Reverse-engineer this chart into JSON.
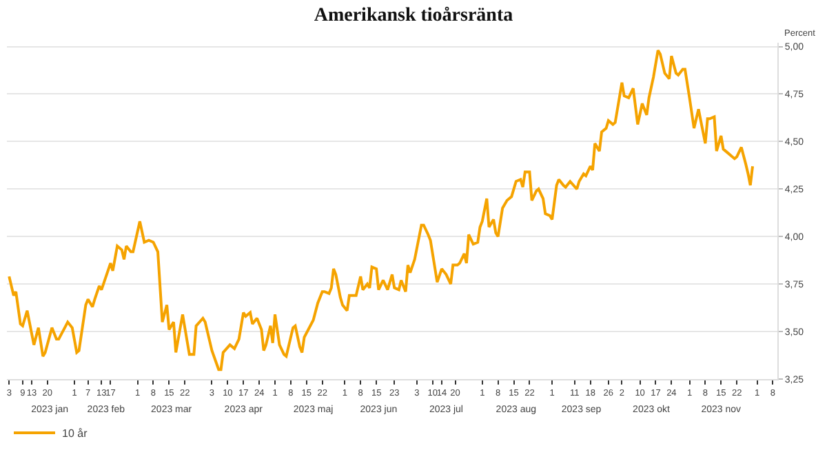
{
  "chart_data": {
    "type": "line",
    "title": "Amerikansk tioårsränta",
    "ylabel": "Percent",
    "legend": "bottom left",
    "grid": "y",
    "marker": "none",
    "line_style": "solid",
    "xlim": [
      "2023-01-02",
      "2023-12-10"
    ],
    "ylim": [
      3.25,
      5.02
    ],
    "yticks": [
      {
        "value": 3.25,
        "label": "3,25"
      },
      {
        "value": 3.5,
        "label": "3,50"
      },
      {
        "value": 3.75,
        "label": "3,75"
      },
      {
        "value": 4,
        "label": "4,00"
      },
      {
        "value": 4.25,
        "label": "4,25"
      },
      {
        "value": 4.5,
        "label": "4,50"
      },
      {
        "value": 4.75,
        "label": "4,75"
      },
      {
        "value": 5,
        "label": "5,00"
      }
    ],
    "xticks": [
      {
        "value": "2023-01-03",
        "label": "3"
      },
      {
        "value": "2023-01-09",
        "label": "9"
      },
      {
        "value": "2023-01-13",
        "label": "13"
      },
      {
        "value": "2023-01-20",
        "label": "20"
      },
      {
        "value": "2023-02-01",
        "label": "1"
      },
      {
        "value": "2023-02-07",
        "label": "7"
      },
      {
        "value": "2023-02-13",
        "label": "13"
      },
      {
        "value": "2023-02-17",
        "label": "17"
      },
      {
        "value": "2023-03-01",
        "label": "1"
      },
      {
        "value": "2023-03-08",
        "label": "8"
      },
      {
        "value": "2023-03-15",
        "label": "15"
      },
      {
        "value": "2023-03-22",
        "label": "22"
      },
      {
        "value": "2023-04-03",
        "label": "3"
      },
      {
        "value": "2023-04-10",
        "label": "10"
      },
      {
        "value": "2023-04-17",
        "label": "17"
      },
      {
        "value": "2023-04-24",
        "label": "24"
      },
      {
        "value": "2023-05-01",
        "label": "1"
      },
      {
        "value": "2023-05-08",
        "label": "8"
      },
      {
        "value": "2023-05-15",
        "label": "15"
      },
      {
        "value": "2023-05-22",
        "label": "22"
      },
      {
        "value": "2023-06-01",
        "label": "1"
      },
      {
        "value": "2023-06-08",
        "label": "8"
      },
      {
        "value": "2023-06-15",
        "label": "15"
      },
      {
        "value": "2023-06-23",
        "label": "23"
      },
      {
        "value": "2023-07-03",
        "label": "3"
      },
      {
        "value": "2023-07-10",
        "label": "10"
      },
      {
        "value": "2023-07-14",
        "label": "14"
      },
      {
        "value": "2023-07-20",
        "label": "20"
      },
      {
        "value": "2023-08-01",
        "label": "1"
      },
      {
        "value": "2023-08-08",
        "label": "8"
      },
      {
        "value": "2023-08-15",
        "label": "15"
      },
      {
        "value": "2023-08-22",
        "label": "22"
      },
      {
        "value": "2023-09-01",
        "label": "1"
      },
      {
        "value": "2023-09-11",
        "label": "11"
      },
      {
        "value": "2023-09-18",
        "label": "18"
      },
      {
        "value": "2023-09-26",
        "label": "26"
      },
      {
        "value": "2023-10-02",
        "label": "2"
      },
      {
        "value": "2023-10-10",
        "label": "10"
      },
      {
        "value": "2023-10-17",
        "label": "17"
      },
      {
        "value": "2023-10-24",
        "label": "24"
      },
      {
        "value": "2023-11-01",
        "label": "1"
      },
      {
        "value": "2023-11-08",
        "label": "8"
      },
      {
        "value": "2023-11-15",
        "label": "15"
      },
      {
        "value": "2023-11-22",
        "label": "22"
      },
      {
        "value": "2023-12-01",
        "label": "1"
      },
      {
        "value": "2023-12-08",
        "label": "8"
      }
    ],
    "x2lim": [
      "2023-01-02",
      "2023-12-10"
    ],
    "x2ticks": [
      {
        "value": "2023-01-21",
        "label": "2023 jan"
      },
      {
        "value": "2023-02-15",
        "label": "2023 feb"
      },
      {
        "value": "2023-03-16",
        "label": "2023 mar"
      },
      {
        "value": "2023-04-17",
        "label": "2023 apr"
      },
      {
        "value": "2023-05-18",
        "label": "2023 maj"
      },
      {
        "value": "2023-06-16",
        "label": "2023 jun"
      },
      {
        "value": "2023-07-16",
        "label": "2023 jul"
      },
      {
        "value": "2023-08-16",
        "label": "2023 aug"
      },
      {
        "value": "2023-09-14",
        "label": "2023 sep"
      },
      {
        "value": "2023-10-15",
        "label": "2023 okt"
      },
      {
        "value": "2023-11-15",
        "label": "2023 nov"
      }
    ],
    "series": [
      {
        "name": "10 år",
        "color": "#f5a300",
        "x": [
          "2023-01-03",
          "2023-01-05",
          "2023-01-06",
          "2023-01-08",
          "2023-01-09",
          "2023-01-11",
          "2023-01-12",
          "2023-01-14",
          "2023-01-16",
          "2023-01-18",
          "2023-01-19",
          "2023-01-22",
          "2023-01-24",
          "2023-01-25",
          "2023-01-29",
          "2023-01-31",
          "2023-02-02",
          "2023-02-03",
          "2023-02-06",
          "2023-02-07",
          "2023-02-09",
          "2023-02-10",
          "2023-02-12",
          "2023-02-13",
          "2023-02-17",
          "2023-02-18",
          "2023-02-20",
          "2023-02-22",
          "2023-02-23",
          "2023-02-24",
          "2023-02-26",
          "2023-02-27",
          "2023-03-02",
          "2023-03-04",
          "2023-03-06",
          "2023-03-08",
          "2023-03-10",
          "2023-03-12",
          "2023-03-14",
          "2023-03-15",
          "2023-03-17",
          "2023-03-18",
          "2023-03-21",
          "2023-03-24",
          "2023-03-26",
          "2023-03-27",
          "2023-03-30",
          "2023-03-31",
          "2023-04-02",
          "2023-04-03",
          "2023-04-06",
          "2023-04-07",
          "2023-04-08",
          "2023-04-11",
          "2023-04-13",
          "2023-04-15",
          "2023-04-17",
          "2023-04-18",
          "2023-04-20",
          "2023-04-21",
          "2023-04-23",
          "2023-04-25",
          "2023-04-26",
          "2023-04-27",
          "2023-04-29",
          "2023-04-30",
          "2023-05-01",
          "2023-05-03",
          "2023-05-05",
          "2023-05-06",
          "2023-05-09",
          "2023-05-10",
          "2023-05-12",
          "2023-05-13",
          "2023-05-14",
          "2023-05-18",
          "2023-05-20",
          "2023-05-22",
          "2023-05-23",
          "2023-05-25",
          "2023-05-26",
          "2023-05-27",
          "2023-05-28",
          "2023-05-30",
          "2023-05-31",
          "2023-06-02",
          "2023-06-03",
          "2023-06-06",
          "2023-06-08",
          "2023-06-09",
          "2023-06-11",
          "2023-06-12",
          "2023-06-13",
          "2023-06-15",
          "2023-06-16",
          "2023-06-18",
          "2023-06-20",
          "2023-06-22",
          "2023-06-23",
          "2023-06-25",
          "2023-06-26",
          "2023-06-28",
          "2023-06-29",
          "2023-06-30",
          "2023-07-02",
          "2023-07-05",
          "2023-07-06",
          "2023-07-08",
          "2023-07-09",
          "2023-07-12",
          "2023-07-14",
          "2023-07-16",
          "2023-07-18",
          "2023-07-19",
          "2023-07-21",
          "2023-07-22",
          "2023-07-24",
          "2023-07-25",
          "2023-07-26",
          "2023-07-28",
          "2023-07-30",
          "2023-07-31",
          "2023-08-01",
          "2023-08-03",
          "2023-08-04",
          "2023-08-06",
          "2023-08-07",
          "2023-08-08",
          "2023-08-10",
          "2023-08-12",
          "2023-08-14",
          "2023-08-16",
          "2023-08-18",
          "2023-08-19",
          "2023-08-20",
          "2023-08-22",
          "2023-08-23",
          "2023-08-25",
          "2023-08-26",
          "2023-08-28",
          "2023-08-29",
          "2023-08-31",
          "2023-09-01",
          "2023-09-03",
          "2023-09-04",
          "2023-09-06",
          "2023-09-07",
          "2023-09-09",
          "2023-09-12",
          "2023-09-13",
          "2023-09-15",
          "2023-09-16",
          "2023-09-18",
          "2023-09-19",
          "2023-09-20",
          "2023-09-22",
          "2023-09-23",
          "2023-09-25",
          "2023-09-26",
          "2023-09-28",
          "2023-09-29",
          "2023-10-02",
          "2023-10-03",
          "2023-10-05",
          "2023-10-07",
          "2023-10-09",
          "2023-10-11",
          "2023-10-13",
          "2023-10-14",
          "2023-10-16",
          "2023-10-18",
          "2023-10-19",
          "2023-10-21",
          "2023-10-23",
          "2023-10-24",
          "2023-10-26",
          "2023-10-27",
          "2023-10-29",
          "2023-10-30",
          "2023-11-01",
          "2023-11-03",
          "2023-11-05",
          "2023-11-08",
          "2023-11-09",
          "2023-11-10",
          "2023-11-12",
          "2023-11-13",
          "2023-11-15",
          "2023-11-16",
          "2023-11-18",
          "2023-11-20",
          "2023-11-21",
          "2023-11-22",
          "2023-11-24",
          "2023-11-26",
          "2023-11-27",
          "2023-11-28",
          "2023-11-29"
        ],
        "values": [
          3.79,
          3.69,
          3.71,
          3.54,
          3.53,
          3.61,
          3.55,
          3.43,
          3.52,
          3.37,
          3.39,
          3.52,
          3.46,
          3.46,
          3.55,
          3.52,
          3.39,
          3.4,
          3.64,
          3.67,
          3.63,
          3.67,
          3.74,
          3.72,
          3.86,
          3.82,
          3.95,
          3.93,
          3.88,
          3.95,
          3.92,
          3.92,
          4.08,
          3.97,
          3.98,
          3.97,
          3.92,
          3.55,
          3.64,
          3.51,
          3.55,
          3.39,
          3.59,
          3.38,
          3.38,
          3.53,
          3.57,
          3.55,
          3.45,
          3.4,
          3.3,
          3.3,
          3.39,
          3.43,
          3.41,
          3.46,
          3.6,
          3.58,
          3.6,
          3.54,
          3.57,
          3.51,
          3.4,
          3.43,
          3.53,
          3.44,
          3.59,
          3.43,
          3.38,
          3.37,
          3.52,
          3.53,
          3.42,
          3.39,
          3.47,
          3.56,
          3.65,
          3.71,
          3.71,
          3.7,
          3.73,
          3.83,
          3.8,
          3.68,
          3.64,
          3.61,
          3.69,
          3.69,
          3.79,
          3.72,
          3.75,
          3.73,
          3.84,
          3.83,
          3.72,
          3.77,
          3.72,
          3.8,
          3.73,
          3.72,
          3.77,
          3.71,
          3.85,
          3.81,
          3.88,
          4.06,
          4.06,
          4.01,
          3.98,
          3.76,
          3.83,
          3.8,
          3.75,
          3.85,
          3.85,
          3.86,
          3.91,
          3.86,
          4.01,
          3.96,
          3.97,
          4.05,
          4.08,
          4.2,
          4.05,
          4.09,
          4.02,
          4.0,
          4.15,
          4.19,
          4.21,
          4.29,
          4.3,
          4.26,
          4.34,
          4.34,
          4.19,
          4.24,
          4.25,
          4.2,
          4.12,
          4.11,
          4.09,
          4.27,
          4.3,
          4.27,
          4.26,
          4.29,
          4.25,
          4.29,
          4.33,
          4.32,
          4.37,
          4.35,
          4.49,
          4.45,
          4.55,
          4.57,
          4.61,
          4.59,
          4.6,
          4.81,
          4.74,
          4.73,
          4.78,
          4.59,
          4.7,
          4.64,
          4.73,
          4.84,
          4.98,
          4.96,
          4.86,
          4.83,
          4.95,
          4.86,
          4.85,
          4.88,
          4.88,
          4.73,
          4.57,
          4.67,
          4.49,
          4.62,
          4.62,
          4.63,
          4.45,
          4.53,
          4.46,
          4.44,
          4.42,
          4.41,
          4.42,
          4.47,
          4.38,
          4.33,
          4.27,
          4.37
        ]
      }
    ]
  }
}
